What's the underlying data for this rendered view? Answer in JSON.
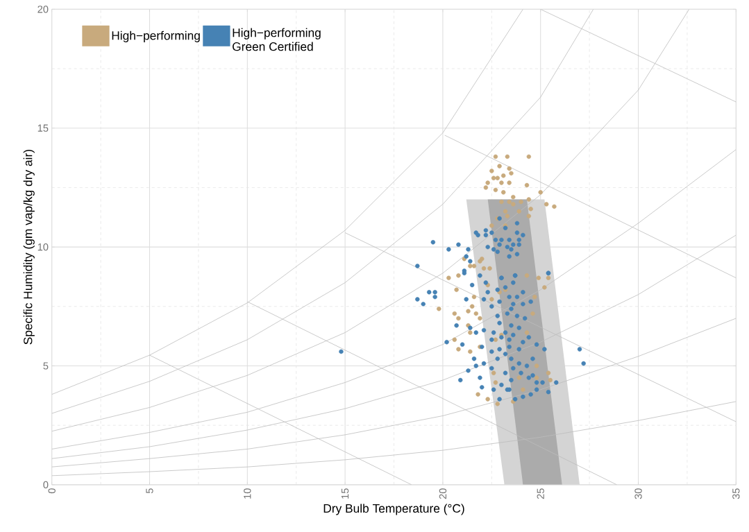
{
  "chart_data": {
    "type": "scatter",
    "xlabel": "Dry Bulb Temperature (°C)",
    "ylabel": "Specific Humidity (gm vap/kg dry air)",
    "xlim": [
      0,
      35
    ],
    "ylim": [
      0,
      20
    ],
    "xticks": [
      0,
      5,
      10,
      15,
      20,
      25,
      30,
      35
    ],
    "yticks": [
      0,
      5,
      10,
      15,
      20
    ],
    "grid": true,
    "legend": "top left",
    "series": [
      {
        "type": "area",
        "color": "#d4d4d4",
        "x": [
          21.2,
          25.2,
          27.0,
          23.15,
          21.2
        ],
        "values": [
          12,
          12,
          0,
          0,
          12
        ]
      },
      {
        "type": "area",
        "color": "#ababab",
        "x": [
          22.3,
          24.3,
          26.1,
          24.1,
          22.3
        ],
        "values": [
          12,
          12,
          0,
          0,
          12
        ]
      },
      {
        "type": "line",
        "color": "#bdbdbd",
        "x": [
          0,
          5,
          10,
          15,
          20,
          24.1
        ],
        "values": [
          3.8,
          5.45,
          7.65,
          10.7,
          14.8,
          20
        ]
      },
      {
        "type": "line",
        "color": "#bdbdbd",
        "x": [
          0,
          5,
          10,
          15,
          20,
          25,
          27.7
        ],
        "values": [
          3.0,
          4.35,
          6.1,
          8.5,
          11.8,
          16.3,
          20
        ]
      },
      {
        "type": "line",
        "color": "#bdbdbd",
        "x": [
          0,
          5,
          10,
          15,
          20,
          25,
          30,
          32.6
        ],
        "values": [
          2.25,
          3.25,
          4.6,
          6.4,
          8.9,
          12.2,
          16.6,
          20
        ]
      },
      {
        "type": "line",
        "color": "#bdbdbd",
        "x": [
          0,
          5,
          10,
          15,
          20,
          25,
          30,
          35
        ],
        "values": [
          1.5,
          2.2,
          3.05,
          4.3,
          5.9,
          8.2,
          11.0,
          14.1
        ]
      },
      {
        "type": "line",
        "color": "#bdbdbd",
        "x": [
          0,
          5,
          10,
          15,
          20,
          25,
          30,
          35
        ],
        "values": [
          1.1,
          1.6,
          2.3,
          3.2,
          4.4,
          6.0,
          8.0,
          10.5
        ]
      },
      {
        "type": "line",
        "color": "#bdbdbd",
        "x": [
          0,
          5,
          10,
          15,
          20,
          25,
          30,
          35
        ],
        "values": [
          0.75,
          1.1,
          1.5,
          2.1,
          2.9,
          4.0,
          5.4,
          7.0
        ]
      },
      {
        "type": "line",
        "color": "#bdbdbd",
        "x": [
          0,
          5,
          10,
          15,
          20,
          25,
          30,
          35
        ],
        "values": [
          0.38,
          0.55,
          0.75,
          1.05,
          1.45,
          2.0,
          2.7,
          3.5
        ]
      },
      {
        "type": "line",
        "color": "#bdbdbd",
        "x": [
          5.0,
          18.4
        ],
        "values": [
          5.45,
          0
        ]
      },
      {
        "type": "line",
        "color": "#bdbdbd",
        "x": [
          10.0,
          28.9
        ],
        "values": [
          7.7,
          0
        ]
      },
      {
        "type": "line",
        "color": "#bdbdbd",
        "x": [
          15.0,
          35
        ],
        "values": [
          10.6,
          2.65
        ]
      },
      {
        "type": "line",
        "color": "#bdbdbd",
        "x": [
          20.1,
          35
        ],
        "values": [
          14.7,
          8.7
        ]
      },
      {
        "type": "line",
        "color": "#bdbdbd",
        "x": [
          25.0,
          35
        ],
        "values": [
          20,
          16.1
        ]
      },
      {
        "name": "High−performing",
        "color": "#c8aa7d",
        "marker": "circle",
        "x": [
          22.7,
          23.3,
          24.4,
          22.9,
          23.4,
          23.5,
          22.5,
          22.6,
          22.8,
          23.1,
          23.0,
          23.4,
          22.3,
          22.2,
          22.7,
          23.1,
          24.3,
          25.0,
          25.3,
          25.7,
          24.4,
          23.6,
          23.0,
          23.4,
          24.0,
          23.6,
          23.2,
          23.9,
          24.5,
          24.4,
          23.3,
          22.8,
          22.5,
          23.2,
          22.0,
          21.9,
          21.6,
          21.1,
          21.4,
          22.1,
          22.4,
          20.3,
          20.8,
          20.7,
          19.8,
          20.6,
          20.8,
          21.3,
          21.5,
          21.7,
          21.6,
          21.9,
          21.3,
          21.4,
          20.6,
          20.8,
          21.4,
          21.9,
          24.3,
          24.9,
          25.4,
          25.2,
          24.7,
          24.6,
          24.3,
          22.7,
          23.0,
          22.5,
          22.9,
          23.2,
          22.3,
          22.6,
          22.7,
          22.3,
          21.8,
          22.8,
          23.6,
          24.1,
          24.8,
          25.4,
          25.5,
          24.8,
          23.9
        ],
        "values": [
          13.8,
          13.8,
          13.8,
          13.4,
          13.3,
          13.1,
          13.2,
          12.9,
          12.9,
          13.0,
          12.7,
          12.7,
          12.7,
          12.5,
          12.4,
          12.3,
          12.6,
          12.3,
          11.8,
          11.7,
          12.0,
          12.1,
          11.9,
          11.9,
          11.9,
          11.8,
          11.5,
          11.5,
          11.6,
          11.3,
          11.3,
          11.2,
          10.9,
          10.9,
          9.5,
          9.4,
          9.2,
          9.5,
          9.2,
          9.1,
          9.1,
          8.7,
          8.8,
          8.2,
          7.4,
          7.2,
          7.0,
          7.3,
          7.5,
          7.2,
          7.9,
          7.0,
          6.7,
          6.4,
          6.1,
          5.7,
          5.6,
          5.8,
          8.8,
          8.7,
          8.7,
          8.3,
          7.9,
          7.2,
          6.4,
          6.1,
          6.3,
          7.8,
          8.1,
          8.2,
          8.4,
          4.7,
          4.3,
          3.6,
          3.8,
          3.4,
          3.5,
          4.0,
          4.5,
          4.7,
          4.4,
          5.0,
          4.5
        ]
      },
      {
        "name": "High−performing Green Certified",
        "color": "#4682b4",
        "marker": "circle",
        "x": [
          22.9,
          23.8,
          21.7,
          22.2,
          23.2,
          22.5,
          21.8,
          22.2,
          23.8,
          24.1,
          22.7,
          23.0,
          23.4,
          23.9,
          22.3,
          22.9,
          23.3,
          23.6,
          23.9,
          22.6,
          22.8,
          23.5,
          23.8,
          23.4,
          19.5,
          20.3,
          20.8,
          21.3,
          21.2,
          21.4,
          18.7,
          21.1,
          25.4,
          23.7,
          23.0,
          18.7,
          19.0,
          19.3,
          19.6,
          19.6,
          21.2,
          20.7,
          20.2,
          21.0,
          20.9,
          21.3,
          21.9,
          22.0,
          22.6,
          22.9,
          23.7,
          24.1,
          24.5,
          24.8,
          25.4,
          25.8,
          25.1,
          24.6,
          23.5,
          23.0,
          23.4,
          27.0,
          27.2,
          25.2,
          24.8,
          24.6,
          24.3,
          23.9,
          23.5,
          23.2,
          22.8,
          22.5,
          22.1,
          21.7,
          21.6,
          22.0,
          22.5,
          22.9,
          23.4,
          23.9,
          24.1,
          23.4,
          24.4,
          23.0,
          22.5,
          21.7,
          22.1,
          22.6,
          23.2,
          23.6,
          21.4,
          22.9,
          23.5,
          23.9,
          22.8,
          23.3,
          23.5,
          23.8,
          24.2,
          23.6,
          24.1,
          24.5,
          22.5,
          22.1,
          22.9,
          23.4,
          23.8,
          22.8,
          23.2,
          23.6,
          24.1,
          22.3,
          22.2,
          23.0,
          23.7,
          21.1,
          21.5,
          21.9,
          25.4,
          23.2,
          23.6,
          24.0,
          24.4,
          24.8,
          23.3,
          14.8
        ],
        "values": [
          11.2,
          11.0,
          10.6,
          10.7,
          10.8,
          10.6,
          10.5,
          10.5,
          10.6,
          10.5,
          10.3,
          10.3,
          10.3,
          10.3,
          10.0,
          10.1,
          10.0,
          10.1,
          10.1,
          9.9,
          9.8,
          9.9,
          9.7,
          9.6,
          10.2,
          9.9,
          10.1,
          9.9,
          9.6,
          9.4,
          9.2,
          9.0,
          8.9,
          8.8,
          8.7,
          7.8,
          7.6,
          8.1,
          8.1,
          7.9,
          7.8,
          6.7,
          6.0,
          5.9,
          4.4,
          4.8,
          4.5,
          4.1,
          4.0,
          3.6,
          3.6,
          3.7,
          3.8,
          4.0,
          3.9,
          4.3,
          4.3,
          4.6,
          4.4,
          4.2,
          4.0,
          5.7,
          5.1,
          5.7,
          5.9,
          5.3,
          5.0,
          5.1,
          5.3,
          5.5,
          5.3,
          4.9,
          5.1,
          5.0,
          5.3,
          5.8,
          5.6,
          5.7,
          5.8,
          5.7,
          6.0,
          6.1,
          6.2,
          6.2,
          6.1,
          6.4,
          6.5,
          6.4,
          6.4,
          6.3,
          6.6,
          6.8,
          6.7,
          6.6,
          7.1,
          7.2,
          7.4,
          7.1,
          7.0,
          7.6,
          7.6,
          7.7,
          7.5,
          7.8,
          7.7,
          7.9,
          7.9,
          8.2,
          8.3,
          8.5,
          8.1,
          8.1,
          8.5,
          8.7,
          8.8,
          8.9,
          8.4,
          8.8,
          8.9,
          4.7,
          4.9,
          4.7,
          4.5,
          4.3,
          4.0,
          5.6
        ]
      }
    ]
  }
}
